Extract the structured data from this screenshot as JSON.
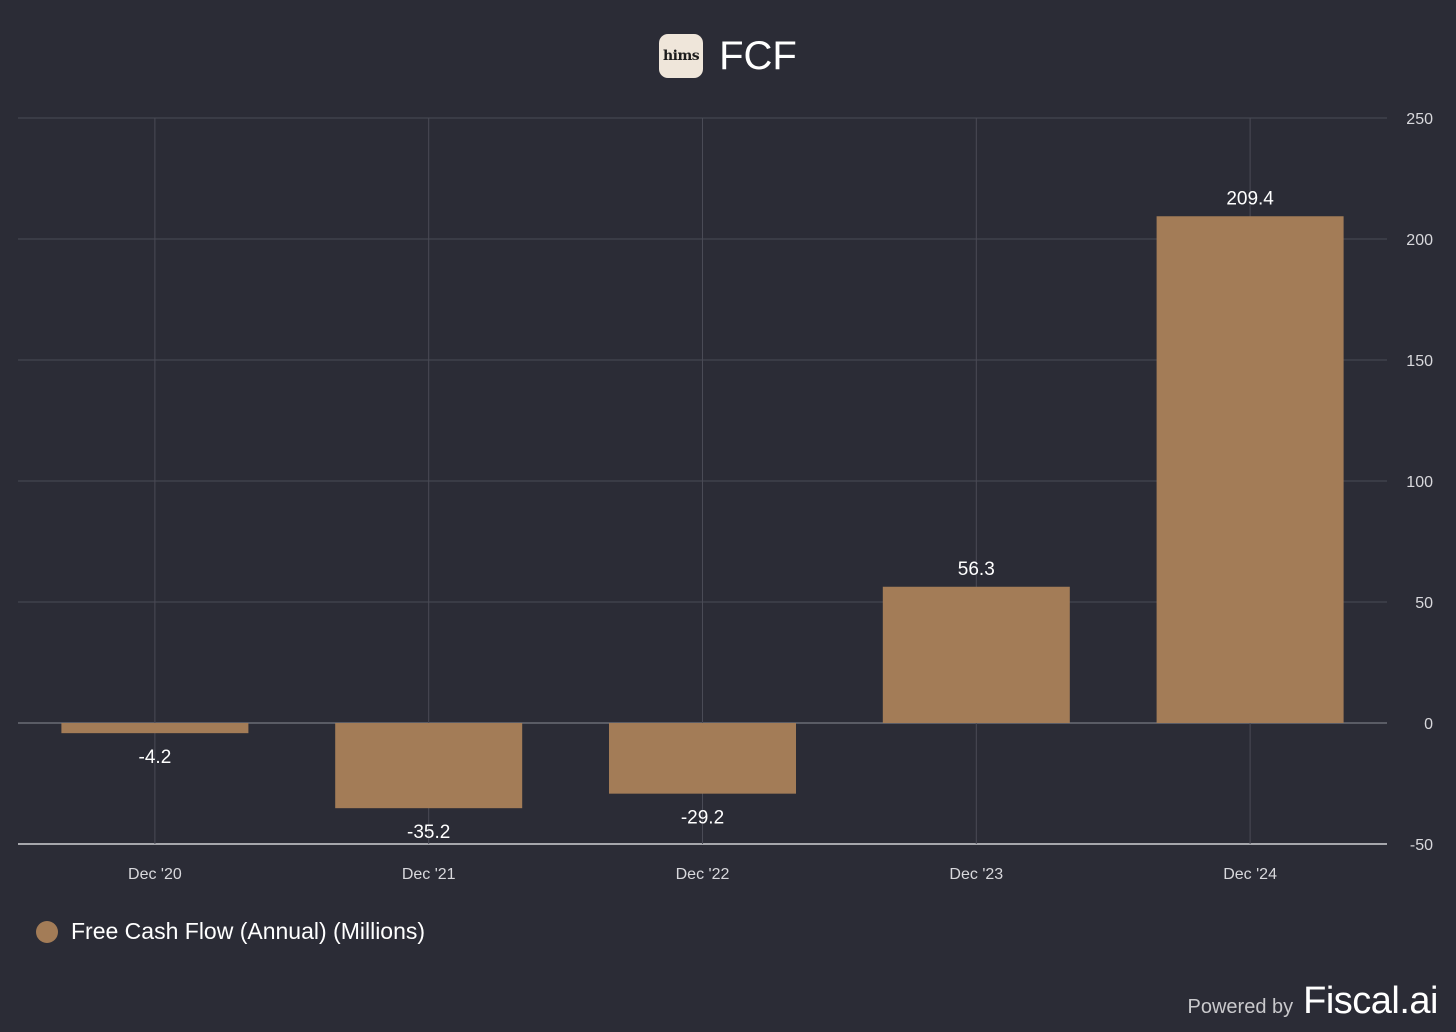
{
  "header": {
    "logo_text": "hims",
    "title": "FCF"
  },
  "colors": {
    "background": "#2b2c36",
    "bar": "#a37c57",
    "grid": "#4a4b56",
    "zero_line": "#8a8b94",
    "axis_line": "#cfd0d4"
  },
  "chart_data": {
    "type": "bar",
    "title": "FCF",
    "categories": [
      "Dec '20",
      "Dec '21",
      "Dec '22",
      "Dec '23",
      "Dec '24"
    ],
    "series": [
      {
        "name": "Free Cash Flow (Annual) (Millions)",
        "values": [
          -4.2,
          -35.2,
          -29.2,
          56.3,
          209.4
        ],
        "labels": [
          "-4.2",
          "-35.2",
          "-29.2",
          "56.3",
          "209.4"
        ]
      }
    ],
    "ylim": [
      -50,
      250
    ],
    "yticks": [
      -50,
      0,
      50,
      100,
      150,
      200,
      250
    ],
    "y_axis_side": "right",
    "grid": true,
    "legend_position": "bottom-left"
  },
  "legend": {
    "label": "Free Cash Flow (Annual) (Millions)"
  },
  "footer": {
    "powered": "Powered by",
    "brand": "Fiscal.ai"
  }
}
